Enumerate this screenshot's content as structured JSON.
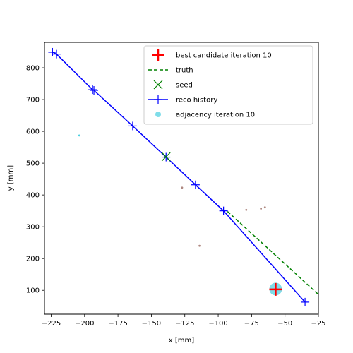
{
  "chart_data": {
    "type": "scatter",
    "xlabel": "x [mm]",
    "ylabel": "y [mm]",
    "xlim": [
      -230,
      -25
    ],
    "ylim": [
      25,
      880
    ],
    "x_ticks": [
      -225,
      -200,
      -175,
      -150,
      -125,
      -100,
      -75,
      -50,
      -25
    ],
    "y_ticks": [
      100,
      200,
      300,
      400,
      500,
      600,
      700,
      800
    ],
    "x_tick_labels": [
      "−225",
      "−200",
      "−175",
      "−150",
      "−125",
      "−100",
      "−75",
      "−50",
      "−25"
    ],
    "y_tick_labels": [
      "100",
      "200",
      "300",
      "400",
      "500",
      "600",
      "700",
      "800"
    ],
    "grid": false,
    "legend_position": "upper right",
    "series": [
      {
        "name": "best candidate iteration 10",
        "kind": "marker",
        "marker": "plus",
        "color": "#ff0000",
        "points": [
          [
            -57,
            103
          ]
        ]
      },
      {
        "name": "truth",
        "kind": "line",
        "style": "dashed",
        "color": "#008000",
        "points": [
          [
            -93,
            348
          ],
          [
            -25,
            87
          ]
        ]
      },
      {
        "name": "seed",
        "kind": "marker",
        "marker": "x",
        "color": "#008000",
        "points": [
          [
            -139,
            520
          ]
        ]
      },
      {
        "name": "reco history",
        "kind": "line-marker",
        "marker": "plus",
        "color": "#0000ff",
        "points": [
          [
            -224,
            849
          ],
          [
            -221,
            843
          ],
          [
            -194,
            731
          ],
          [
            -193,
            729
          ],
          [
            -164,
            617
          ],
          [
            -139,
            519
          ],
          [
            -117,
            432
          ],
          [
            -96,
            350
          ],
          [
            -35,
            63
          ]
        ]
      },
      {
        "name": "adjacency iteration 10",
        "kind": "scatter",
        "marker": "circle",
        "color": "#00bcd4",
        "opacity": 0.5,
        "points": [
          [
            -57,
            104
          ]
        ]
      }
    ],
    "extra_points": [
      {
        "x": -204,
        "y": 587,
        "color": "#00bcd4"
      },
      {
        "x": -127,
        "y": 423,
        "color": "#8c564b"
      },
      {
        "x": -114,
        "y": 240,
        "color": "#8c564b"
      },
      {
        "x": -79,
        "y": 353,
        "color": "#8c564b"
      },
      {
        "x": -68,
        "y": 357,
        "color": "#8c564b"
      },
      {
        "x": -65,
        "y": 361,
        "color": "#8c564b"
      }
    ]
  }
}
